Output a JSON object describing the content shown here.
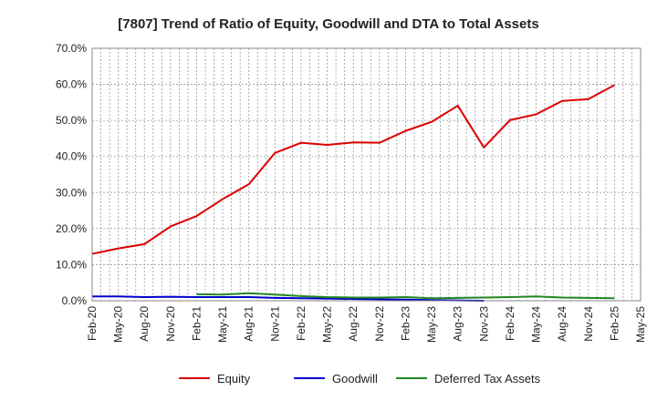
{
  "chart_data": {
    "type": "line",
    "title": "[7807]  Trend of Ratio of Equity, Goodwill and DTA to Total Assets",
    "xlabel": "",
    "ylabel": "",
    "ylim": [
      0,
      70
    ],
    "y_ticks": [
      "0.0%",
      "10.0%",
      "20.0%",
      "30.0%",
      "40.0%",
      "50.0%",
      "60.0%",
      "70.0%"
    ],
    "x_ticks": [
      "Feb-20",
      "May-20",
      "Aug-20",
      "Nov-20",
      "Feb-21",
      "May-21",
      "Aug-21",
      "Nov-21",
      "Feb-22",
      "May-22",
      "Aug-22",
      "Nov-22",
      "Feb-23",
      "May-23",
      "Aug-23",
      "Nov-23",
      "Feb-24",
      "May-24",
      "Aug-24",
      "Nov-24",
      "Feb-25",
      "May-25"
    ],
    "grid": true,
    "legend_position": "bottom",
    "colors": {
      "equity": "#dd0000",
      "goodwill": "#0000cc",
      "dta": "#228822"
    },
    "series": [
      {
        "name": "Equity",
        "color": "#dd0000",
        "values": [
          13.0,
          14.5,
          15.7,
          20.6,
          23.5,
          28.2,
          32.3,
          41.0,
          43.8,
          43.2,
          43.9,
          43.8,
          47.1,
          49.6,
          54.1,
          42.5,
          50.1,
          51.7,
          55.4,
          55.9,
          59.8,
          null
        ]
      },
      {
        "name": "Goodwill",
        "color": "#0000cc",
        "values": [
          1.2,
          1.2,
          1.0,
          1.1,
          1.0,
          1.0,
          1.0,
          0.8,
          0.7,
          0.6,
          0.5,
          0.4,
          0.3,
          0.2,
          0.1,
          0.0,
          null,
          null,
          null,
          null,
          null,
          null
        ]
      },
      {
        "name": "Deferred Tax Assets",
        "color": "#228822",
        "values": [
          null,
          null,
          null,
          null,
          1.8,
          1.7,
          2.1,
          1.7,
          1.3,
          1.0,
          0.9,
          0.9,
          1.0,
          0.7,
          0.8,
          0.9,
          1.0,
          1.2,
          0.9,
          0.8,
          0.7,
          null
        ]
      }
    ]
  }
}
